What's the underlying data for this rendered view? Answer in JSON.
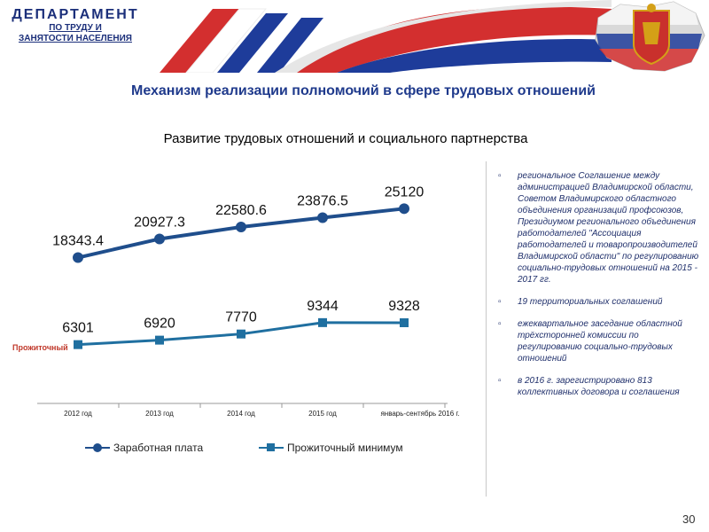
{
  "header": {
    "logo_title": "ДЕПАРТАМЕНТ",
    "logo_line1": "ПО ТРУДУ И",
    "logo_line2": "ЗАНЯТОСТИ НАСЕЛЕНИЯ"
  },
  "slide_title": "Механизм реализации полномочий в сфере трудовых отношений",
  "chart_title": "Развитие трудовых отношений и социального партнерства",
  "sub_label": "Прожиточный",
  "chart_data": {
    "type": "line",
    "categories": [
      "2012 год",
      "2013 год",
      "2014 год",
      "2015 год",
      "январь-сентябрь 2016 г."
    ],
    "series": [
      {
        "name": "Заработная плата",
        "values": [
          18343.4,
          20927.3,
          22580.6,
          23876.5,
          25120
        ],
        "labels": [
          "18343.4",
          "20927.3",
          "22580.6",
          "23876.5",
          "25120"
        ],
        "color": "#1f4e8c",
        "marker": "circle"
      },
      {
        "name": "Прожиточный минимум",
        "values": [
          6301,
          6920,
          7770,
          9344,
          9328
        ],
        "labels": [
          "6301",
          "6920",
          "7770",
          "9344",
          "9328"
        ],
        "color": "#1f6fa0",
        "marker": "square"
      }
    ],
    "legend_position": "bottom",
    "grid": false
  },
  "notes": [
    "региональное Соглашение между администрацией Владимирской области, Советом Владимирского областного объединения организаций профсоюзов, Президиумом регионального объединения работодателей \"Ассоциация работодателей и товаропроизводителей Владимирской области\" по регулированию социально-трудовых отношений на 2015 - 2017 гг.",
    "19 территориальных соглашений",
    "ежеквартальное заседание областной трёхсторонней комиссии по регулированию социально-трудовых отношений",
    "в 2016 г. зарегистрировано 813 коллективных договора и соглашения"
  ],
  "bullet": "▫",
  "page_number": "30",
  "colors": {
    "accent": "#1f3a8c",
    "red": "#d32f2f",
    "blue": "#1e3c9a"
  }
}
